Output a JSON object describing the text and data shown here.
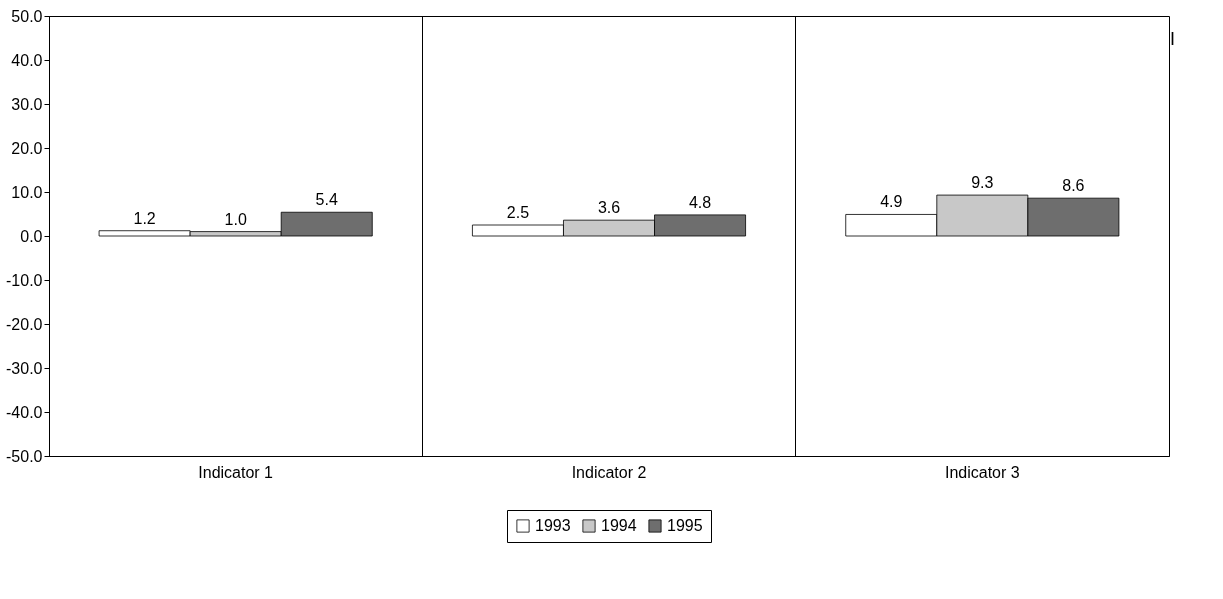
{
  "chart_data": {
    "type": "bar",
    "categories": [
      "Indicator 1",
      "Indicator 2",
      "Indicator 3"
    ],
    "series": [
      {
        "name": "1993",
        "color": "#ffffff",
        "values": [
          1.2,
          2.5,
          4.9
        ],
        "value_labels": [
          "1.2",
          "2.5",
          "4.9"
        ]
      },
      {
        "name": "1994",
        "color": "#c8c8c8",
        "values": [
          1.0,
          3.6,
          9.3
        ],
        "value_labels": [
          "1.0",
          "3.6",
          "9.3"
        ]
      },
      {
        "name": "1995",
        "color": "#6e6e6e",
        "values": [
          5.4,
          4.8,
          8.6
        ],
        "value_labels": [
          "5.4",
          "4.8",
          "8.6"
        ]
      }
    ],
    "ylim": [
      -50,
      50
    ],
    "yticks": [
      {
        "value": -50,
        "label": "-50.0"
      },
      {
        "value": -40,
        "label": "-40.0"
      },
      {
        "value": -30,
        "label": "-30.0"
      },
      {
        "value": -20,
        "label": "-20.0"
      },
      {
        "value": -10,
        "label": "-10.0"
      },
      {
        "value": 0,
        "label": "0.0"
      },
      {
        "value": 10,
        "label": "10.0"
      },
      {
        "value": 20,
        "label": "20.0"
      },
      {
        "value": 30,
        "label": "30.0"
      },
      {
        "value": 40,
        "label": "40.0"
      },
      {
        "value": 50,
        "label": "50.0"
      }
    ],
    "grid": "x",
    "legend": "bottom",
    "annotations": [
      "I"
    ]
  }
}
